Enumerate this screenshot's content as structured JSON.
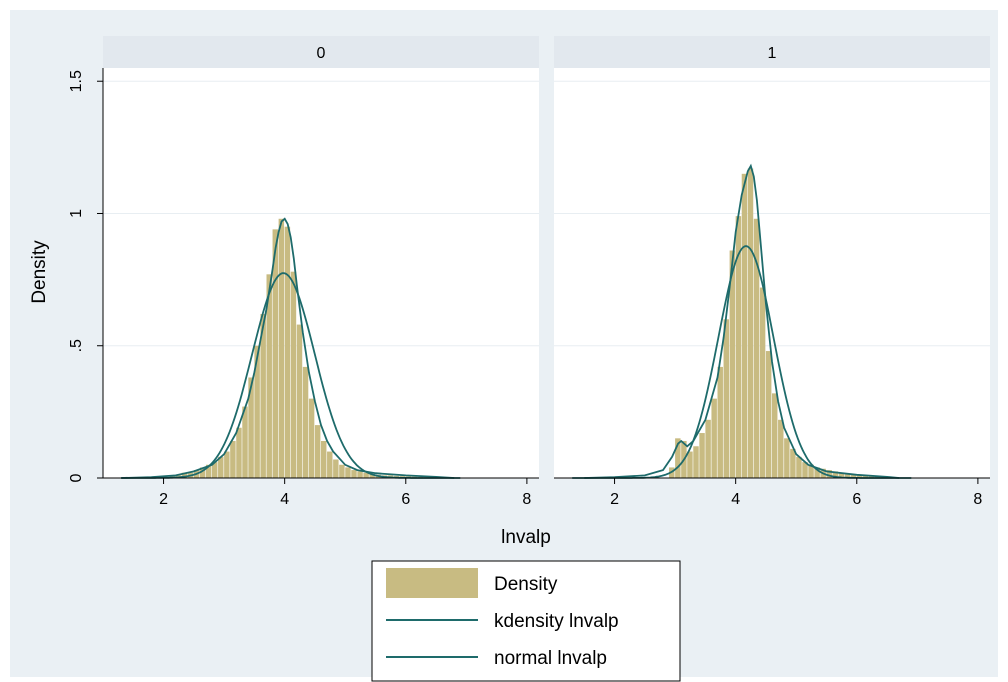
{
  "chart_data": {
    "type": "bar",
    "subtype": "histogram with density overlays",
    "xlabel": "lnvalp",
    "ylabel": "Density",
    "xlim": [
      1,
      8.2
    ],
    "ylim": [
      0,
      1.55
    ],
    "xticks": [
      2,
      4,
      6,
      8
    ],
    "yticks": [
      0,
      0.5,
      1,
      1.5
    ],
    "ytick_labels": [
      "0",
      ".5",
      "1",
      "1.5"
    ],
    "grid": true,
    "legend_position": "bottom",
    "bar_width": 0.1,
    "colors": {
      "bars": "#c8bb82",
      "lines": "#1e6b6b",
      "strip": "#e2e8ee",
      "outer_bg": "#eaf0f4",
      "plot_bg": "#ffffff",
      "grid": "#e8eef2"
    },
    "legend": [
      {
        "label": "Density",
        "kind": "bar"
      },
      {
        "label": "kdensity lnvalp",
        "kind": "line"
      },
      {
        "label": "normal lnvalp",
        "kind": "line"
      }
    ],
    "panels": [
      {
        "title": "0",
        "bins_x": [
          2.15,
          2.25,
          2.35,
          2.45,
          2.55,
          2.65,
          2.75,
          2.85,
          2.95,
          3.05,
          3.15,
          3.25,
          3.35,
          3.45,
          3.55,
          3.65,
          3.75,
          3.85,
          3.95,
          4.05,
          4.15,
          4.25,
          4.35,
          4.45,
          4.55,
          4.65,
          4.75,
          4.85,
          4.95,
          5.05,
          5.15,
          5.25,
          5.35,
          5.45,
          5.55,
          5.65,
          5.75,
          5.85,
          5.95,
          6.05,
          6.15,
          6.25,
          6.35,
          6.45
        ],
        "bins_y": [
          0.01,
          0.01,
          0.02,
          0.02,
          0.03,
          0.04,
          0.05,
          0.06,
          0.08,
          0.1,
          0.14,
          0.19,
          0.27,
          0.38,
          0.5,
          0.62,
          0.77,
          0.94,
          0.98,
          0.95,
          0.78,
          0.58,
          0.42,
          0.3,
          0.2,
          0.14,
          0.1,
          0.07,
          0.05,
          0.04,
          0.03,
          0.025,
          0.02,
          0.015,
          0.012,
          0.01,
          0.01,
          0.008,
          0.007,
          0.006,
          0.005,
          0.004,
          0.003,
          0.002
        ],
        "kdensity": {
          "x": [
            1.3,
            1.8,
            2.2,
            2.5,
            2.8,
            3.0,
            3.2,
            3.4,
            3.5,
            3.6,
            3.7,
            3.8,
            3.85,
            3.9,
            3.95,
            4.0,
            4.05,
            4.1,
            4.15,
            4.2,
            4.3,
            4.4,
            4.5,
            4.6,
            4.7,
            4.8,
            5.0,
            5.2,
            5.5,
            6.0,
            6.5,
            6.8
          ],
          "y": [
            0.0,
            0.003,
            0.01,
            0.025,
            0.05,
            0.09,
            0.17,
            0.3,
            0.4,
            0.52,
            0.64,
            0.79,
            0.87,
            0.93,
            0.97,
            0.98,
            0.96,
            0.91,
            0.83,
            0.73,
            0.55,
            0.4,
            0.29,
            0.2,
            0.14,
            0.1,
            0.05,
            0.03,
            0.018,
            0.01,
            0.004,
            0.0
          ]
        },
        "normal": {
          "mean": 3.98,
          "sd": 0.515
        }
      },
      {
        "title": "1",
        "bins_x": [
          2.95,
          3.05,
          3.15,
          3.25,
          3.35,
          3.45,
          3.55,
          3.65,
          3.75,
          3.85,
          3.95,
          4.05,
          4.15,
          4.25,
          4.35,
          4.45,
          4.55,
          4.65,
          4.75,
          4.85,
          4.95,
          5.05,
          5.15,
          5.25,
          5.35,
          5.45,
          5.55,
          5.65,
          5.75,
          5.85,
          5.95,
          6.05,
          6.15,
          6.25,
          6.35,
          6.45,
          6.55
        ],
        "bins_y": [
          0.04,
          0.15,
          0.14,
          0.1,
          0.12,
          0.17,
          0.22,
          0.3,
          0.42,
          0.6,
          0.86,
          0.99,
          1.15,
          1.17,
          0.98,
          0.72,
          0.48,
          0.32,
          0.22,
          0.15,
          0.11,
          0.08,
          0.06,
          0.05,
          0.04,
          0.035,
          0.03,
          0.025,
          0.02,
          0.015,
          0.012,
          0.01,
          0.008,
          0.006,
          0.005,
          0.004,
          0.003
        ],
        "kdensity": {
          "x": [
            1.5,
            2.0,
            2.5,
            2.8,
            2.95,
            3.05,
            3.1,
            3.2,
            3.3,
            3.5,
            3.7,
            3.8,
            3.9,
            4.0,
            4.1,
            4.2,
            4.25,
            4.3,
            4.35,
            4.4,
            4.5,
            4.6,
            4.7,
            4.8,
            5.0,
            5.2,
            5.5,
            6.0,
            6.5,
            6.7
          ],
          "y": [
            0.0,
            0.003,
            0.01,
            0.03,
            0.08,
            0.13,
            0.14,
            0.12,
            0.14,
            0.22,
            0.38,
            0.53,
            0.72,
            0.93,
            1.07,
            1.16,
            1.18,
            1.14,
            1.05,
            0.92,
            0.66,
            0.44,
            0.29,
            0.19,
            0.09,
            0.05,
            0.025,
            0.012,
            0.004,
            0.0
          ]
        },
        "normal": {
          "mean": 4.17,
          "sd": 0.455
        }
      }
    ]
  }
}
